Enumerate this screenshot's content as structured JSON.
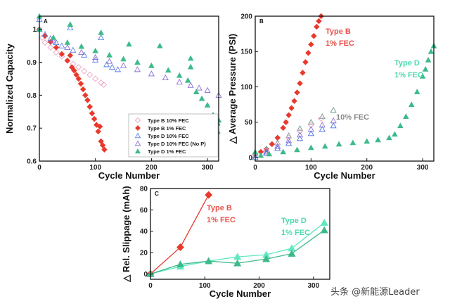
{
  "watermark": "头条 @新能源Leader",
  "chart_data": [
    {
      "type": "scatter",
      "panel_label": "A",
      "xlabel": "Cycle Number",
      "ylabel": "Normalized Capacity",
      "xlim": [
        0,
        320
      ],
      "ylim": [
        0.6,
        1.04
      ],
      "xticks": [
        "0",
        "100",
        "200",
        "300"
      ],
      "xtick_values": [
        0,
        100,
        200,
        300
      ],
      "yticks": [
        "0.6",
        "0.7",
        "0.8",
        "0.9",
        "1"
      ],
      "ytick_values": [
        0.6,
        0.7,
        0.8,
        0.9,
        1.0
      ],
      "grid": false,
      "legend": "bottom-right",
      "annotations": [],
      "series": [
        {
          "name": "Type B 10% FEC",
          "marker": "diamond-open",
          "color": "#e9a3c4",
          "points": [
            [
              0,
              1
            ],
            [
              5,
              0.975
            ],
            [
              10,
              0.96
            ],
            [
              20,
              0.945
            ],
            [
              30,
              0.93
            ],
            [
              40,
              0.918
            ],
            [
              50,
              0.905
            ],
            [
              60,
              0.895
            ],
            [
              70,
              0.885
            ],
            [
              80,
              0.873
            ],
            [
              90,
              0.862
            ],
            [
              100,
              0.85
            ],
            [
              110,
              0.838
            ],
            [
              115,
              0.832
            ]
          ]
        },
        {
          "name": "Type B 1% FEC",
          "marker": "diamond-filled",
          "color": "#e8392b",
          "points": [
            [
              0,
              1
            ],
            [
              10,
              0.98
            ],
            [
              20,
              0.962
            ],
            [
              30,
              0.945
            ],
            [
              40,
              0.925
            ],
            [
              50,
              0.905
            ],
            [
              55,
              0.921
            ],
            [
              58,
              0.885
            ],
            [
              62,
              0.875
            ],
            [
              66,
              0.862
            ],
            [
              70,
              0.85
            ],
            [
              74,
              0.835
            ],
            [
              78,
              0.818
            ],
            [
              82,
              0.8
            ],
            [
              86,
              0.785
            ],
            [
              90,
              0.765
            ],
            [
              94,
              0.745
            ],
            [
              98,
              0.728
            ],
            [
              102,
              0.71
            ],
            [
              105,
              0.69
            ],
            [
              108,
              0.705
            ],
            [
              110,
              0.66
            ],
            [
              113,
              0.648
            ],
            [
              116,
              0.635
            ]
          ]
        },
        {
          "name": "Type D 10% FEC",
          "marker": "triangle-open",
          "color": "#5a80e6",
          "points": [
            [
              0,
              1.03
            ],
            [
              0,
              1
            ],
            [
              10,
              0.985
            ],
            [
              20,
              0.972
            ],
            [
              30,
              0.96
            ],
            [
              40,
              0.95
            ],
            [
              55,
              1.005
            ],
            [
              60,
              0.937
            ],
            [
              80,
              0.922
            ],
            [
              100,
              0.907
            ],
            [
              110,
              0.975
            ],
            [
              120,
              0.893
            ],
            [
              130,
              0.885
            ],
            [
              140,
              0.878
            ]
          ]
        },
        {
          "name": "Type D 10% FEC (No P)",
          "marker": "triangle-open",
          "color": "#8a6fd6",
          "points": [
            [
              0,
              1
            ],
            [
              25,
              0.965
            ],
            [
              50,
              0.945
            ],
            [
              75,
              0.93
            ],
            [
              100,
              0.915
            ],
            [
              125,
              0.903
            ],
            [
              150,
              0.89
            ],
            [
              175,
              0.878
            ],
            [
              200,
              0.865
            ],
            [
              225,
              0.853
            ],
            [
              250,
              0.84
            ],
            [
              270,
              0.83
            ],
            [
              285,
              0.822
            ],
            [
              300,
              0.815
            ],
            [
              320,
              0.8
            ]
          ]
        },
        {
          "name": "Type D 1% FEC",
          "marker": "triangle-filled",
          "color": "#3dba8a",
          "points": [
            [
              0,
              1.04
            ],
            [
              0,
              1
            ],
            [
              25,
              0.975
            ],
            [
              50,
              0.96
            ],
            [
              55,
              1.015
            ],
            [
              75,
              0.948
            ],
            [
              100,
              0.935
            ],
            [
              110,
              0.99
            ],
            [
              125,
              0.922
            ],
            [
              150,
              0.91
            ],
            [
              160,
              0.955
            ],
            [
              175,
              0.9
            ],
            [
              200,
              0.89
            ],
            [
              215,
              0.95
            ],
            [
              230,
              0.876
            ],
            [
              250,
              0.86
            ],
            [
              265,
              0.845
            ],
            [
              270,
              0.912
            ],
            [
              270,
              0.886
            ],
            [
              280,
              0.81
            ],
            [
              290,
              0.79
            ],
            [
              300,
              0.77
            ],
            [
              310,
              0.74
            ],
            [
              318,
              0.715
            ],
            [
              318,
              0.69
            ],
            [
              320,
              0.724
            ]
          ]
        }
      ]
    },
    {
      "type": "scatter",
      "panel_label": "B",
      "xlabel": "Cycle Number",
      "ylabel": "△ Average Pressure (PSI)",
      "xlim": [
        0,
        320
      ],
      "ylim": [
        -5,
        200
      ],
      "xticks": [
        "0",
        "100",
        "200",
        "300"
      ],
      "xtick_values": [
        0,
        100,
        200,
        300
      ],
      "yticks": [
        "0",
        "50",
        "100",
        "150",
        "200"
      ],
      "ytick_values": [
        0,
        50,
        100,
        150,
        200
      ],
      "grid": false,
      "annotations": [
        {
          "lines": [
            "Type B",
            "1% FEC"
          ],
          "color": "#e8514a"
        },
        {
          "lines": [
            "Type D",
            "1% FEC"
          ],
          "color": "#4fd8b0"
        },
        {
          "lines": [
            "10% FEC"
          ],
          "color": "#888888"
        }
      ],
      "series": [
        {
          "marker": "diamond-filled",
          "color": "#e8392b",
          "points": [
            [
              0,
              5
            ],
            [
              10,
              8
            ],
            [
              20,
              12
            ],
            [
              30,
              19
            ],
            [
              40,
              28
            ],
            [
              50,
              42
            ],
            [
              55,
              50
            ],
            [
              60,
              60
            ],
            [
              65,
              70
            ],
            [
              70,
              80
            ],
            [
              75,
              92
            ],
            [
              80,
              105
            ],
            [
              85,
              120
            ],
            [
              90,
              135
            ],
            [
              95,
              148
            ],
            [
              100,
              160
            ],
            [
              105,
              172
            ],
            [
              110,
              185
            ],
            [
              114,
              193
            ],
            [
              118,
              200
            ]
          ]
        },
        {
          "marker": "triangle-open",
          "color": "#6f9a8a",
          "points": [
            [
              0,
              3
            ],
            [
              20,
              12
            ],
            [
              40,
              21
            ],
            [
              60,
              31
            ],
            [
              80,
              41
            ],
            [
              100,
              50
            ],
            [
              120,
              58
            ],
            [
              140,
              67
            ]
          ]
        },
        {
          "marker": "diamond-open",
          "color": "#e9a3c4",
          "points": [
            [
              0,
              3
            ],
            [
              20,
              10
            ],
            [
              40,
              19
            ],
            [
              60,
              28
            ],
            [
              80,
              37
            ],
            [
              100,
              46
            ],
            [
              118,
              55
            ]
          ]
        },
        {
          "marker": "triangle-open",
          "color": "#8a6fd6",
          "points": [
            [
              0,
              0
            ],
            [
              20,
              8
            ],
            [
              40,
              16
            ],
            [
              60,
              24
            ],
            [
              80,
              32
            ],
            [
              100,
              40
            ],
            [
              120,
              46
            ],
            [
              140,
              52
            ]
          ]
        },
        {
          "marker": "triangle-open",
          "color": "#4a6fe0",
          "points": [
            [
              0,
              0
            ],
            [
              20,
              6
            ],
            [
              40,
              13
            ],
            [
              60,
              20
            ],
            [
              80,
              27
            ],
            [
              100,
              34
            ],
            [
              120,
              40
            ],
            [
              140,
              45
            ]
          ]
        },
        {
          "marker": "triangle-filled",
          "color": "#3dba8a",
          "points": [
            [
              0,
              8
            ],
            [
              10,
              3
            ],
            [
              25,
              5
            ],
            [
              50,
              8
            ],
            [
              75,
              11
            ],
            [
              100,
              14
            ],
            [
              125,
              16
            ],
            [
              150,
              19
            ],
            [
              175,
              21
            ],
            [
              200,
              23
            ],
            [
              220,
              25
            ],
            [
              240,
              28
            ],
            [
              250,
              33
            ],
            [
              260,
              45
            ],
            [
              270,
              58
            ],
            [
              280,
              75
            ],
            [
              290,
              93
            ],
            [
              300,
              115
            ],
            [
              305,
              125
            ],
            [
              310,
              138
            ],
            [
              315,
              150
            ],
            [
              320,
              158
            ]
          ]
        }
      ]
    },
    {
      "type": "line",
      "panel_label": "C",
      "xlabel": "Cycle Number",
      "ylabel": "△ Rel. Slippage (mAh)",
      "xlim": [
        0,
        330
      ],
      "ylim": [
        -5,
        80
      ],
      "xticks": [
        "0",
        "100",
        "200",
        "300"
      ],
      "xtick_values": [
        0,
        100,
        200,
        300
      ],
      "yticks": [
        "0",
        "20",
        "40",
        "60",
        "80"
      ],
      "ytick_values": [
        0,
        20,
        40,
        60,
        80
      ],
      "grid": false,
      "annotations": [
        {
          "lines": [
            "Type B",
            "1% FEC"
          ],
          "color": "#e8514a"
        },
        {
          "lines": [
            "Type D",
            "1% FEC"
          ],
          "color": "#4fd8b0"
        }
      ],
      "series": [
        {
          "marker": "diamond-filled",
          "color": "#e8392b",
          "points": [
            [
              0,
              0
            ],
            [
              55,
              25
            ],
            [
              107,
              74
            ]
          ]
        },
        {
          "marker": "triangle-filled",
          "color": "#5fe8c0",
          "points": [
            [
              0,
              0
            ],
            [
              55,
              7
            ],
            [
              107,
              12
            ],
            [
              160,
              16
            ],
            [
              213,
              18
            ],
            [
              260,
              24
            ],
            [
              320,
              48
            ]
          ]
        },
        {
          "marker": "triangle-filled",
          "color": "#3dba8a",
          "points": [
            [
              0,
              0
            ],
            [
              55,
              9
            ],
            [
              107,
              12
            ],
            [
              160,
              10
            ],
            [
              213,
              14
            ],
            [
              260,
              19
            ],
            [
              320,
              41
            ]
          ]
        }
      ]
    }
  ]
}
